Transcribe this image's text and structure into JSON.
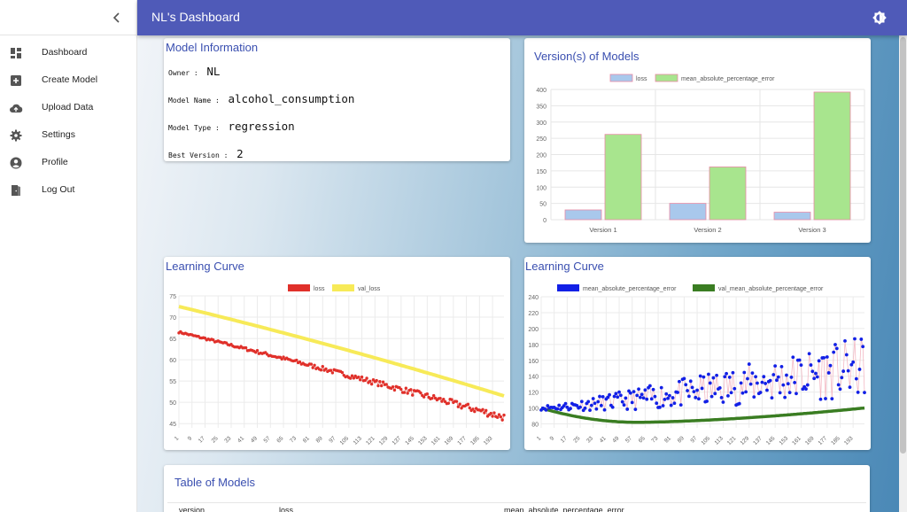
{
  "app": {
    "title": "NL's Dashboard"
  },
  "icons": {
    "collapse": "chevron-left-icon",
    "theme": "brightness-icon"
  },
  "sidebar": {
    "items": [
      {
        "label": "Dashboard",
        "icon": "dashboard-icon"
      },
      {
        "label": "Create Model",
        "icon": "add-box-icon"
      },
      {
        "label": "Upload Data",
        "icon": "cloud-upload-icon"
      },
      {
        "label": "Settings",
        "icon": "gear-icon"
      },
      {
        "label": "Profile",
        "icon": "account-circle-icon"
      },
      {
        "label": "Log Out",
        "icon": "door-exit-icon"
      }
    ]
  },
  "model_info": {
    "title": "Model Information",
    "owner_label": "Owner :",
    "owner": "NL",
    "name_label": "Model Name :",
    "name": "alcohol_consumption",
    "type_label": "Model Type :",
    "type": "regression",
    "best_label": "Best Version :",
    "best": "2"
  },
  "versions_card": {
    "title": "Version(s) of Models"
  },
  "learning_curve_1": {
    "title": "Learning Curve"
  },
  "learning_curve_2": {
    "title": "Learning Curve"
  },
  "table": {
    "title": "Table of Models",
    "columns": [
      "version",
      "loss",
      "mean_absolute_percentage_error"
    ]
  },
  "colors": {
    "accent": "#4f5ab8",
    "loss_red": "#e0302a",
    "val_yellow": "#f7ea58",
    "mape_blue": "#1220e6",
    "val_mape_green": "#3a7d22",
    "bar_blue": "#a9c8ec",
    "bar_green": "#a8e58e"
  },
  "chart_data": [
    {
      "type": "bar",
      "categories": [
        "Version 1",
        "Version 2",
        "Version 3"
      ],
      "series": [
        {
          "name": "loss",
          "values": [
            30,
            50,
            23
          ]
        },
        {
          "name": "mean_absolute_percentage_error",
          "values": [
            262,
            162,
            392
          ]
        }
      ],
      "ylim": [
        0,
        400
      ],
      "yticks": [
        0,
        50,
        100,
        150,
        200,
        250,
        300,
        350,
        400
      ],
      "legend": "top",
      "grid": true
    },
    {
      "type": "line",
      "x_range": [
        1,
        200
      ],
      "xticks": [
        1,
        9,
        17,
        25,
        33,
        41,
        49,
        57,
        65,
        73,
        81,
        89,
        97,
        105,
        113,
        121,
        129,
        137,
        145,
        153,
        161,
        169,
        177,
        185,
        193
      ],
      "series": [
        {
          "name": "loss",
          "start": 66.5,
          "end": 46.5
        },
        {
          "name": "val_loss",
          "start": 72.5,
          "end": 51.5
        }
      ],
      "ylim": [
        44,
        75
      ],
      "yticks": [
        45,
        50,
        55,
        60,
        65,
        70,
        75
      ],
      "legend": "top",
      "grid": true
    },
    {
      "type": "line",
      "x_range": [
        1,
        200
      ],
      "xticks": [
        1,
        9,
        17,
        25,
        33,
        41,
        49,
        57,
        65,
        73,
        81,
        89,
        97,
        105,
        113,
        121,
        129,
        137,
        145,
        153,
        161,
        169,
        177,
        185,
        193
      ],
      "series": [
        {
          "name": "mean_absolute_percentage_error",
          "start": 100,
          "end": 195,
          "noise": "increasing"
        },
        {
          "name": "val_mean_absolute_percentage_error",
          "start": 100,
          "min": 82,
          "min_at": 60,
          "end": 100
        }
      ],
      "ylim": [
        75,
        240
      ],
      "yticks": [
        80,
        100,
        120,
        140,
        160,
        180,
        200,
        220,
        240
      ],
      "legend": "top",
      "grid": true
    }
  ]
}
